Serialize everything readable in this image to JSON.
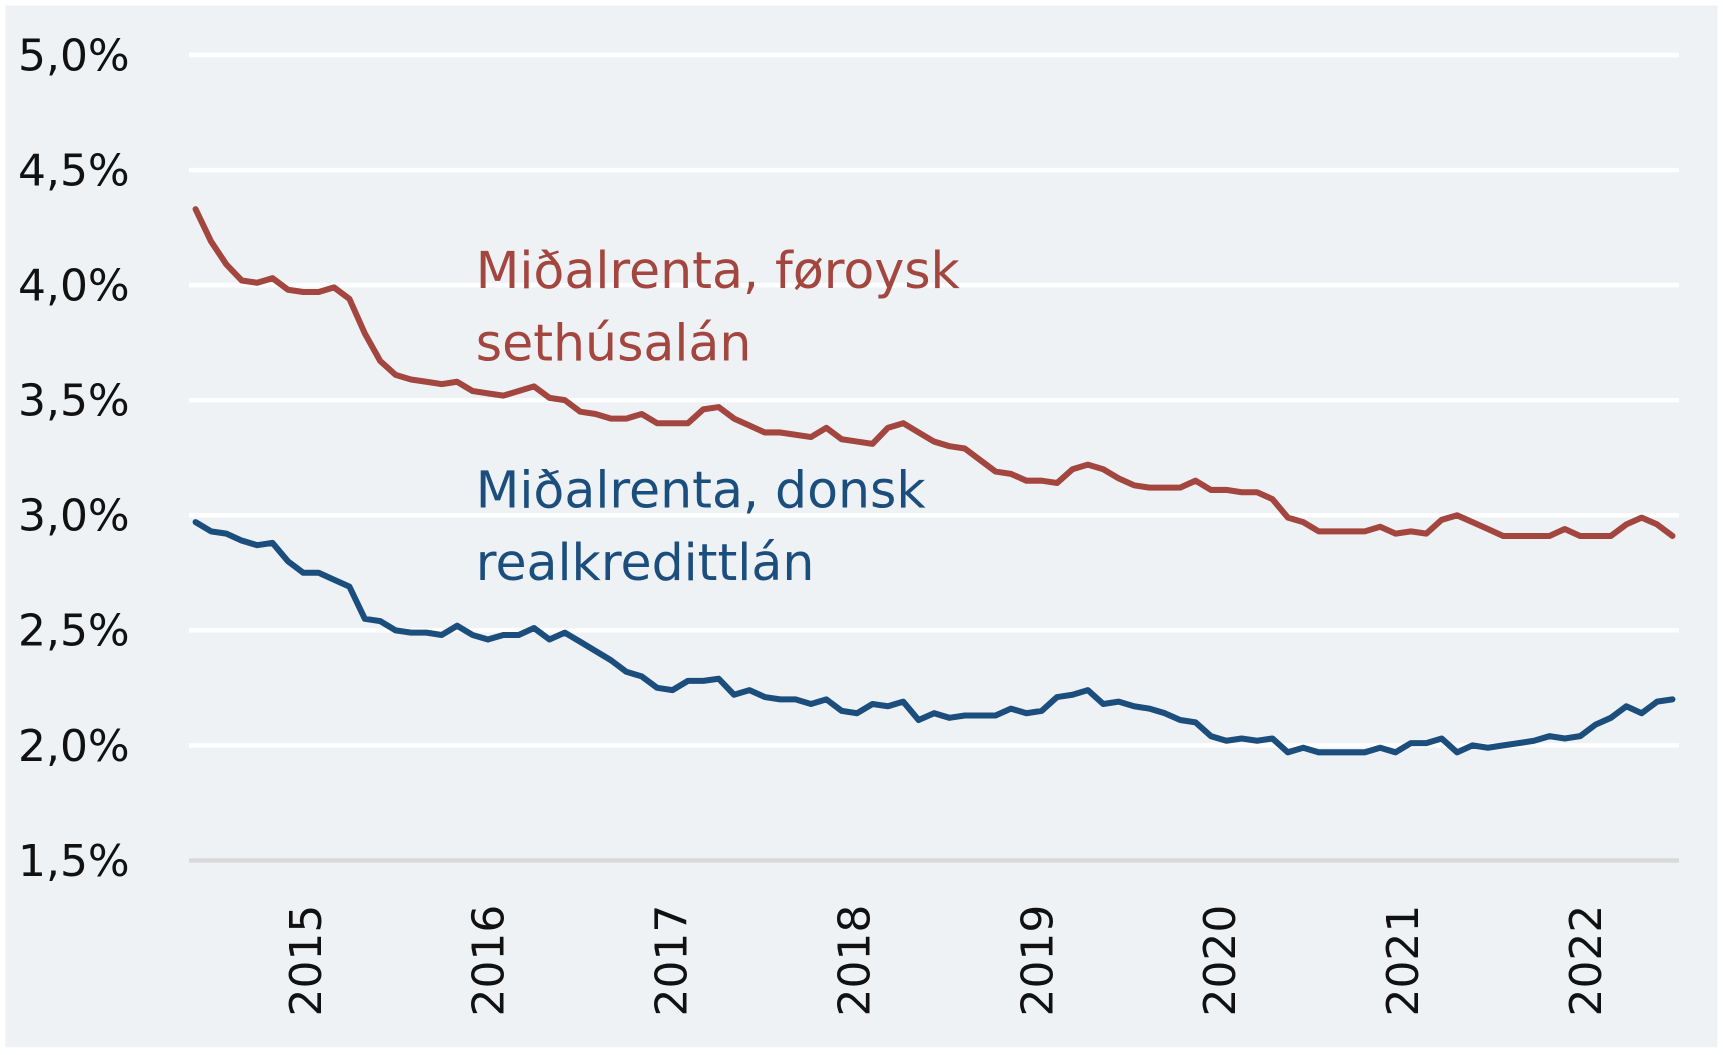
{
  "chart_data": {
    "type": "line",
    "title": "",
    "xlabel": "",
    "ylabel": "",
    "ylim": [
      1.5,
      5.0
    ],
    "yticks": [
      "5,0%",
      "4,5%",
      "4,0%",
      "3,5%",
      "3,0%",
      "2,5%",
      "2,0%",
      "1,5%"
    ],
    "ytick_values": [
      5.0,
      4.5,
      4.0,
      3.5,
      3.0,
      2.5,
      2.0,
      1.5
    ],
    "xticks": [
      "2015",
      "2016",
      "2017",
      "2018",
      "2019",
      "2020",
      "2021",
      "2022"
    ],
    "x_frequency": "monthly",
    "grid": true,
    "series": [
      {
        "name": "Miðalrenta, føroysk sethúsalán",
        "label_lines": [
          "Miðalrenta, føroysk",
          "sethúsalán"
        ],
        "color": "#a3463f",
        "values": [
          4.33,
          4.19,
          4.09,
          4.02,
          4.01,
          4.03,
          3.98,
          3.97,
          3.97,
          3.99,
          3.94,
          3.79,
          3.67,
          3.61,
          3.59,
          3.58,
          3.57,
          3.58,
          3.54,
          3.53,
          3.52,
          3.54,
          3.56,
          3.51,
          3.5,
          3.45,
          3.44,
          3.42,
          3.42,
          3.44,
          3.4,
          3.4,
          3.4,
          3.46,
          3.47,
          3.42,
          3.39,
          3.36,
          3.36,
          3.35,
          3.34,
          3.38,
          3.33,
          3.32,
          3.31,
          3.38,
          3.4,
          3.36,
          3.32,
          3.3,
          3.29,
          3.24,
          3.19,
          3.18,
          3.15,
          3.15,
          3.14,
          3.2,
          3.22,
          3.2,
          3.16,
          3.13,
          3.12,
          3.12,
          3.12,
          3.15,
          3.11,
          3.11,
          3.1,
          3.1,
          3.07,
          2.99,
          2.97,
          2.93,
          2.93,
          2.93,
          2.93,
          2.95,
          2.92,
          2.93,
          2.92,
          2.98,
          3.0,
          2.97,
          2.94,
          2.91,
          2.91,
          2.91,
          2.91,
          2.94,
          2.91,
          2.91,
          2.91,
          2.96,
          2.99,
          2.96,
          2.91
        ]
      },
      {
        "name": "Miðalrenta, donsk realkredittlán",
        "label_lines": [
          "Miðalrenta, donsk",
          "realkredittlán"
        ],
        "color": "#1c4e7d",
        "values": [
          2.97,
          2.93,
          2.92,
          2.89,
          2.87,
          2.88,
          2.8,
          2.75,
          2.75,
          2.72,
          2.69,
          2.55,
          2.54,
          2.5,
          2.49,
          2.49,
          2.48,
          2.52,
          2.48,
          2.46,
          2.48,
          2.48,
          2.51,
          2.46,
          2.49,
          2.45,
          2.41,
          2.37,
          2.32,
          2.3,
          2.25,
          2.24,
          2.28,
          2.28,
          2.29,
          2.22,
          2.24,
          2.21,
          2.2,
          2.2,
          2.18,
          2.2,
          2.15,
          2.14,
          2.18,
          2.17,
          2.19,
          2.11,
          2.14,
          2.12,
          2.13,
          2.13,
          2.13,
          2.16,
          2.14,
          2.15,
          2.21,
          2.22,
          2.24,
          2.18,
          2.19,
          2.17,
          2.16,
          2.14,
          2.11,
          2.1,
          2.04,
          2.02,
          2.03,
          2.02,
          2.03,
          1.97,
          1.99,
          1.97,
          1.97,
          1.97,
          1.97,
          1.99,
          1.97,
          2.01,
          2.01,
          2.03,
          1.97,
          2.0,
          1.99,
          2.0,
          2.01,
          2.02,
          2.04,
          2.03,
          2.04,
          2.09,
          2.12,
          2.17,
          2.14,
          2.19,
          2.2
        ]
      }
    ]
  }
}
